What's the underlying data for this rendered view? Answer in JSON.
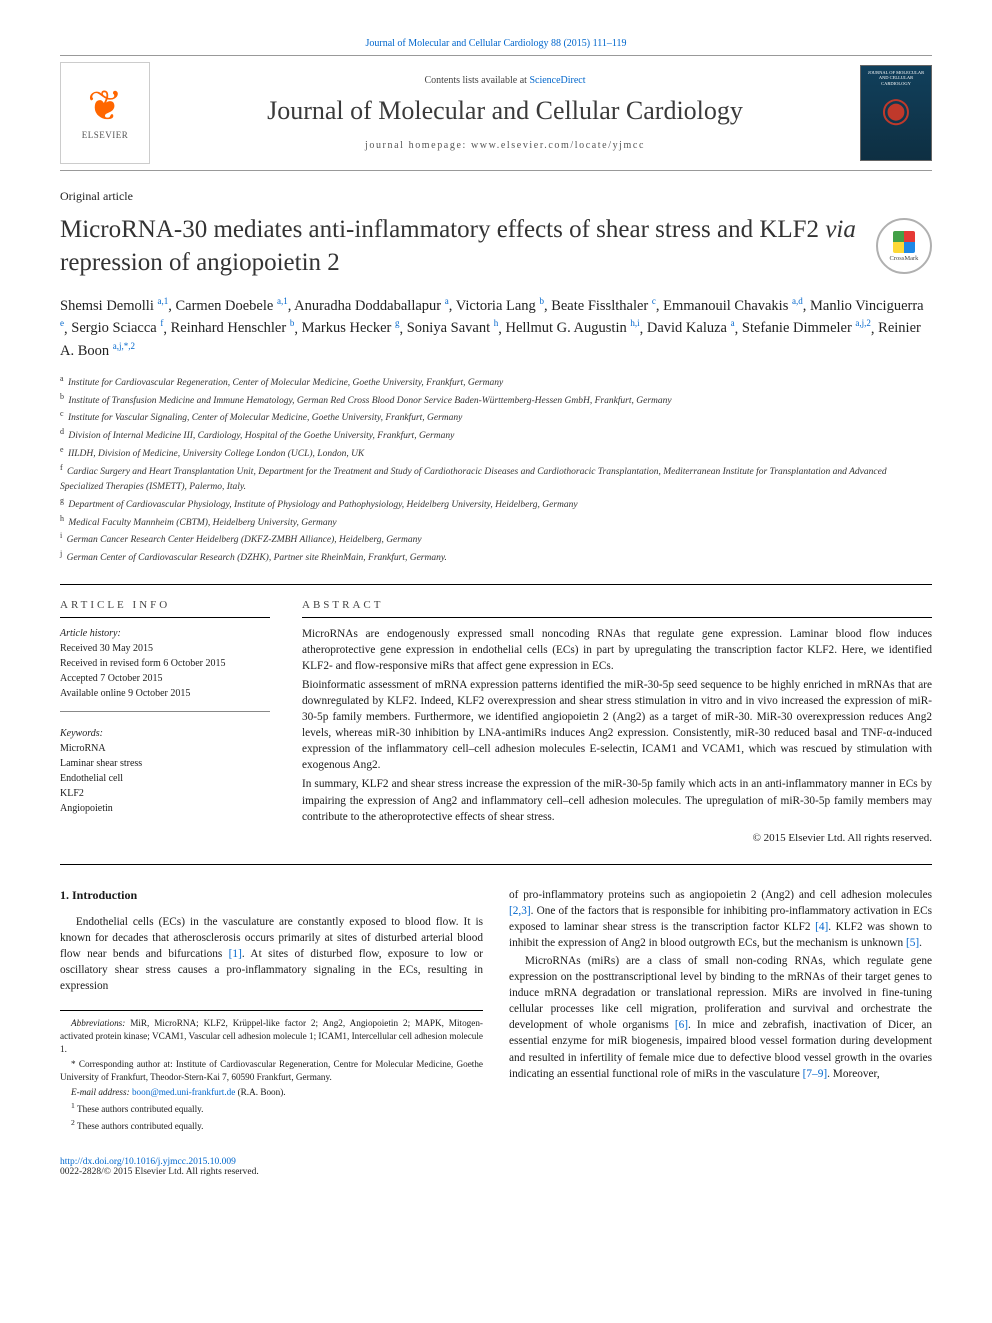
{
  "colors": {
    "link": "#0066cc",
    "text": "#1a1a1a",
    "rule": "#000000",
    "masthead_rule": "#999999",
    "elsevier_orange": "#ff6600",
    "cover_bg_top": "#11405c",
    "cover_bg_bottom": "#0e2f42"
  },
  "fonts": {
    "base_family": "Georgia, Times New Roman, serif",
    "title_size_pt": 25,
    "journal_name_size_pt": 26,
    "body_size_pt": 11.3,
    "author_size_pt": 14.5,
    "affil_size_pt": 9.5,
    "footnote_size_pt": 9.2
  },
  "top_ref": {
    "text": "Journal of Molecular and Cellular Cardiology 88 (2015) 111–119"
  },
  "masthead": {
    "contents_prefix": "Contents lists available at ",
    "contents_link": "ScienceDirect",
    "journal_name": "Journal of Molecular and Cellular Cardiology",
    "homepage_prefix": "journal homepage: ",
    "homepage_url": "www.elsevier.com/locate/yjmcc",
    "elsevier_brand": "ELSEVIER",
    "cover_text": "JOURNAL OF MOLECULAR AND CELLULAR CARDIOLOGY"
  },
  "crossmark_label": "CrossMark",
  "article_type": "Original article",
  "title_parts": {
    "pre": "MicroRNA-30 mediates anti-inflammatory effects of shear stress and KLF2 ",
    "italic": "via",
    "post": " repression of angiopoietin 2"
  },
  "authors": [
    {
      "name": "Shemsi Demolli",
      "aff": "a,1"
    },
    {
      "name": "Carmen Doebele",
      "aff": "a,1"
    },
    {
      "name": "Anuradha Doddaballapur",
      "aff": "a"
    },
    {
      "name": "Victoria Lang",
      "aff": "b"
    },
    {
      "name": "Beate Fisslthaler",
      "aff": "c"
    },
    {
      "name": "Emmanouil Chavakis",
      "aff": "a,d"
    },
    {
      "name": "Manlio Vinciguerra",
      "aff": "e"
    },
    {
      "name": "Sergio Sciacca",
      "aff": "f"
    },
    {
      "name": "Reinhard Henschler",
      "aff": "b"
    },
    {
      "name": "Markus Hecker",
      "aff": "g"
    },
    {
      "name": "Soniya Savant",
      "aff": "h"
    },
    {
      "name": "Hellmut G. Augustin",
      "aff": "h,i"
    },
    {
      "name": "David Kaluza",
      "aff": "a"
    },
    {
      "name": "Stefanie Dimmeler",
      "aff": "a,j,2"
    },
    {
      "name": "Reinier A. Boon",
      "aff": "a,j,*,2"
    }
  ],
  "affiliations": [
    {
      "key": "a",
      "text": "Institute for Cardiovascular Regeneration, Center of Molecular Medicine, Goethe University, Frankfurt, Germany"
    },
    {
      "key": "b",
      "text": "Institute of Transfusion Medicine and Immune Hematology, German Red Cross Blood Donor Service Baden-Württemberg-Hessen GmbH, Frankfurt, Germany"
    },
    {
      "key": "c",
      "text": "Institute for Vascular Signaling, Center of Molecular Medicine, Goethe University, Frankfurt, Germany"
    },
    {
      "key": "d",
      "text": "Division of Internal Medicine III, Cardiology, Hospital of the Goethe University, Frankfurt, Germany"
    },
    {
      "key": "e",
      "text": "IILDH, Division of Medicine, University College London (UCL), London, UK"
    },
    {
      "key": "f",
      "text": "Cardiac Surgery and Heart Transplantation Unit, Department for the Treatment and Study of Cardiothoracic Diseases and Cardiothoracic Transplantation, Mediterranean Institute for Transplantation and Advanced Specialized Therapies (ISMETT), Palermo, Italy."
    },
    {
      "key": "g",
      "text": "Department of Cardiovascular Physiology, Institute of Physiology and Pathophysiology, Heidelberg University, Heidelberg, Germany"
    },
    {
      "key": "h",
      "text": "Medical Faculty Mannheim (CBTM), Heidelberg University, Germany"
    },
    {
      "key": "i",
      "text": "German Cancer Research Center Heidelberg (DKFZ-ZMBH Alliance), Heidelberg, Germany"
    },
    {
      "key": "j",
      "text": "German Center of Cardiovascular Research (DZHK), Partner site RheinMain, Frankfurt, Germany."
    }
  ],
  "article_info": {
    "heading": "ARTICLE INFO",
    "history_label": "Article history:",
    "received": "Received 30 May 2015",
    "revised": "Received in revised form 6 October 2015",
    "accepted": "Accepted 7 October 2015",
    "online": "Available online 9 October 2015",
    "keywords_label": "Keywords:",
    "keywords": [
      "MicroRNA",
      "Laminar shear stress",
      "Endothelial cell",
      "KLF2",
      "Angiopoietin"
    ]
  },
  "abstract": {
    "heading": "ABSTRACT",
    "p1": "MicroRNAs are endogenously expressed small noncoding RNAs that regulate gene expression. Laminar blood flow induces atheroprotective gene expression in endothelial cells (ECs) in part by upregulating the transcription factor KLF2. Here, we identified KLF2- and flow-responsive miRs that affect gene expression in ECs.",
    "p2": "Bioinformatic assessment of mRNA expression patterns identified the miR-30-5p seed sequence to be highly enriched in mRNAs that are downregulated by KLF2. Indeed, KLF2 overexpression and shear stress stimulation in vitro and in vivo increased the expression of miR-30-5p family members. Furthermore, we identified angiopoietin 2 (Ang2) as a target of miR-30. MiR-30 overexpression reduces Ang2 levels, whereas miR-30 inhibition by LNA-antimiRs induces Ang2 expression. Consistently, miR-30 reduced basal and TNF-α-induced expression of the inflammatory cell–cell adhesion molecules E-selectin, ICAM1 and VCAM1, which was rescued by stimulation with exogenous Ang2.",
    "p3": "In summary, KLF2 and shear stress increase the expression of the miR-30-5p family which acts in an anti-inflammatory manner in ECs by impairing the expression of Ang2 and inflammatory cell–cell adhesion molecules. The upregulation of miR-30-5p family members may contribute to the atheroprotective effects of shear stress.",
    "copyright": "© 2015 Elsevier Ltd. All rights reserved."
  },
  "body": {
    "intro_heading": "1. Introduction",
    "p1_pre": "Endothelial cells (ECs) in the vasculature are constantly exposed to blood flow. It is known for decades that atherosclerosis occurs primarily at sites of disturbed arterial blood flow near bends and bifurcations ",
    "ref1": "[1]",
    "p1_post": ". At sites of disturbed flow, exposure to low or oscillatory shear stress causes a pro-inflammatory signaling in the ECs, resulting in expression",
    "p2_pre": "of pro-inflammatory proteins such as angiopoietin 2 (Ang2) and cell adhesion molecules ",
    "ref23": "[2,3]",
    "p2_mid1": ". One of the factors that is responsible for inhibiting pro-inflammatory activation in ECs exposed to laminar shear stress is the transcription factor KLF2 ",
    "ref4": "[4]",
    "p2_mid2": ". KLF2 was shown to inhibit the expression of Ang2 in blood outgrowth ECs, but the mechanism is unknown ",
    "ref5": "[5]",
    "p2_post": ".",
    "p3_pre": "MicroRNAs (miRs) are a class of small non-coding RNAs, which regulate gene expression on the posttranscriptional level by binding to the mRNAs of their target genes to induce mRNA degradation or translational repression. MiRs are involved in fine-tuning cellular processes like cell migration, proliferation and survival and orchestrate the development of whole organisms ",
    "ref6": "[6]",
    "p3_mid": ". In mice and zebrafish, inactivation of Dicer, an essential enzyme for miR biogenesis, impaired blood vessel formation during development and resulted in infertility of female mice due to defective blood vessel growth in the ovaries indicating an essential functional role of miRs in the vasculature ",
    "ref79": "[7–9]",
    "p3_post": ". Moreover,"
  },
  "footnotes": {
    "abbrev_label": "Abbreviations:",
    "abbrev": " MiR, MicroRNA; KLF2, Krüppel-like factor 2; Ang2, Angiopoietin 2; MAPK, Mitogen-activated protein kinase; VCAM1, Vascular cell adhesion molecule 1; ICAM1, Intercellular cell adhesion molecule 1.",
    "corr_marker": "*",
    "corr": " Corresponding author at: Institute of Cardiovascular Regeneration, Centre for Molecular Medicine, Goethe University of Frankfurt, Theodor-Stern-Kai 7, 60590 Frankfurt, Germany.",
    "email_label": "E-mail address:",
    "email": "boon@med.uni-frankfurt.de",
    "email_paren": " (R.A. Boon).",
    "eq1_marker": "1",
    "eq1": " These authors contributed equally.",
    "eq2_marker": "2",
    "eq2": " These authors contributed equally."
  },
  "footer": {
    "doi": "http://dx.doi.org/10.1016/j.yjmcc.2015.10.009",
    "issn_line": "0022-2828/© 2015 Elsevier Ltd. All rights reserved."
  }
}
